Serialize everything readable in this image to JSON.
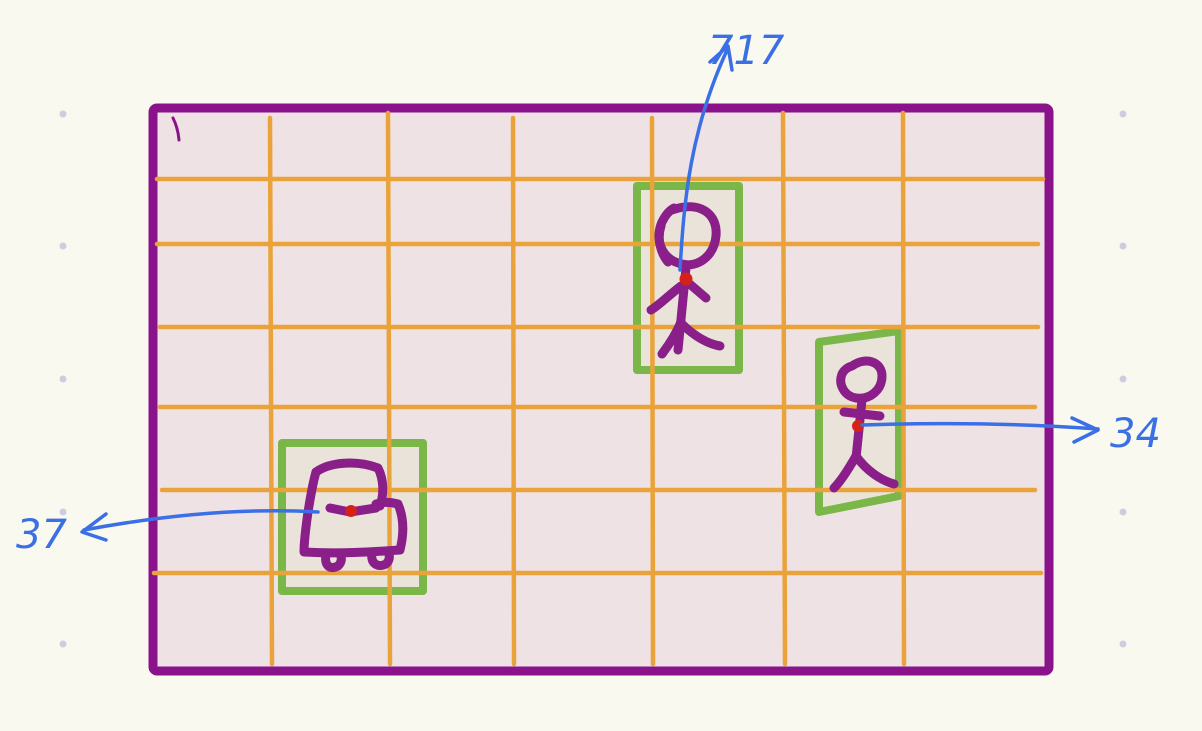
{
  "colors": {
    "background": "#f9f9f0",
    "dot": "#cfcce0",
    "frame_stroke": "#8a138c",
    "frame_fill": "#efe2e4",
    "grid": "#eaa33a",
    "box_stroke": "#7ab648",
    "box_fill": "#e9e3da",
    "figure": "#8a1f8a",
    "center_point": "#d4221a",
    "annotation": "#3b6fe6"
  },
  "icons": {
    "person_top": "person-sketch-icon",
    "person_right": "person-sketch-icon",
    "car": "car-sketch-icon"
  },
  "labels": {
    "top_person": "717",
    "right_person": "34",
    "car": "37"
  }
}
